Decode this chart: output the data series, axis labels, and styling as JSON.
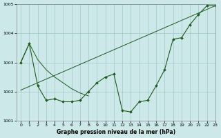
{
  "line1_x": [
    0,
    1,
    2,
    3,
    4,
    5,
    6,
    7,
    8,
    9,
    10,
    11,
    12,
    13,
    14,
    15,
    16,
    17,
    18,
    19,
    20,
    21,
    22,
    23
  ],
  "line1_y": [
    1003.0,
    1003.65,
    1002.2,
    1001.7,
    1001.75,
    1001.65,
    1001.65,
    1001.7,
    1002.0,
    1002.3,
    1002.5,
    1002.6,
    1001.35,
    1001.3,
    1001.65,
    1001.7,
    1002.2,
    1002.75,
    1003.8,
    1003.85,
    1004.3,
    1004.65,
    1004.95,
    1004.95
  ],
  "line2_x": [
    0,
    23
  ],
  "line2_y": [
    1002.05,
    1004.95
  ],
  "line3_x": [
    0,
    1,
    2,
    3,
    4,
    5,
    6,
    7,
    8
  ],
  "line3_y": [
    1003.0,
    1003.65,
    1003.1,
    1002.75,
    1002.5,
    1002.3,
    1002.1,
    1001.95,
    1001.85
  ],
  "title": "Graphe pression niveau de la mer (hPa)",
  "xlim": [
    -0.5,
    23
  ],
  "ylim": [
    1001,
    1005
  ],
  "yticks": [
    1001,
    1002,
    1003,
    1004,
    1005
  ],
  "xticks": [
    0,
    1,
    2,
    3,
    4,
    5,
    6,
    7,
    8,
    9,
    10,
    11,
    12,
    13,
    14,
    15,
    16,
    17,
    18,
    19,
    20,
    21,
    22,
    23
  ],
  "line_color": "#1a5c1a",
  "bg_color": "#cce8e8",
  "grid_color": "#a0c8c8"
}
